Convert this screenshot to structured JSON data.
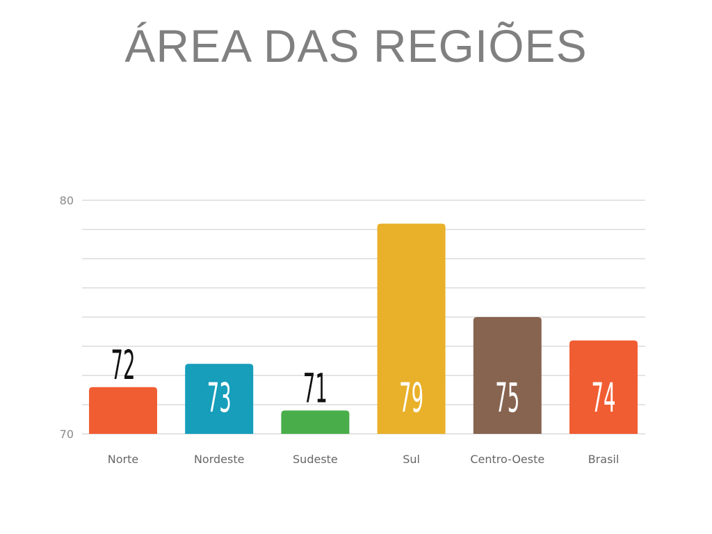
{
  "title": "ÁREA DAS REGIÕES",
  "colors": {
    "title": "#808080",
    "grid": "#dcdcdc",
    "label_dark": "#111111",
    "label_light": "#ffffff"
  },
  "chart_data": {
    "type": "bar",
    "title": "ÁREA DAS REGIÕES",
    "xlabel": "",
    "ylabel": "",
    "ylim": [
      70,
      80
    ],
    "yticks": [
      70,
      80
    ],
    "grid": true,
    "legend": "none",
    "categories": [
      "Norte",
      "Nordeste",
      "Sudeste",
      "Sul",
      "Centro-Oeste",
      "Brasil"
    ],
    "values": [
      72,
      73,
      71,
      79,
      75,
      74
    ],
    "data_labels": [
      "72",
      "73",
      "71",
      "79",
      "75",
      "74"
    ],
    "bar_colors": [
      "#f15d33",
      "#169ebb",
      "#49ad4a",
      "#e9b02a",
      "#876450",
      "#f15d33"
    ]
  }
}
